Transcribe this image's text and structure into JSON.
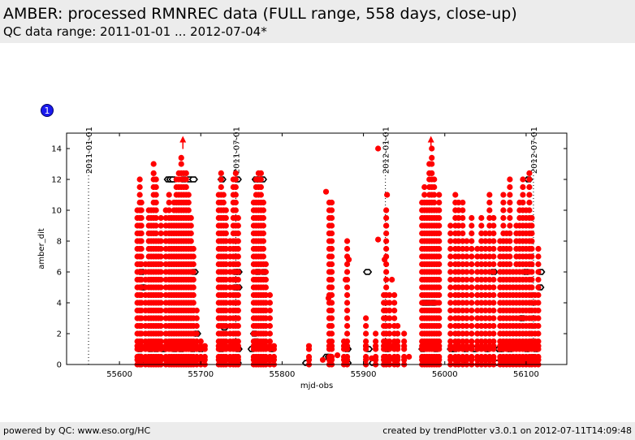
{
  "header": {
    "title": "AMBER: processed RMNREC data (FULL range, 558 days, close-up)",
    "subtitle": "QC data range: 2011-01-01 ... 2012-07-04*"
  },
  "badge": "1",
  "footer": {
    "left": "powered by QC: www.eso.org/HC",
    "right": "created by trendPlotter v3.0.1 on 2012-07-11T14:09:48"
  },
  "colors": {
    "red_points": "#ff0000",
    "black_points": "#000000",
    "badge": "#1a1aee",
    "header_bg": "#ececec"
  },
  "chart_data": {
    "type": "scatter",
    "xlabel": "mjd-obs",
    "ylabel": "amber_dit",
    "xlim": [
      55535,
      56150
    ],
    "ylim": [
      0,
      15
    ],
    "xticks": [
      55600,
      55700,
      55800,
      55900,
      56000,
      56100
    ],
    "yticks": [
      0,
      2,
      4,
      6,
      8,
      10,
      12,
      14
    ],
    "date_markers": [
      {
        "label": "2011-01-01",
        "mjd": 55562
      },
      {
        "label": "2011-07-01",
        "mjd": 55743
      },
      {
        "label": "2012-01-01",
        "mjd": 55927
      },
      {
        "label": "2012-07-01",
        "mjd": 56109
      }
    ],
    "outlier_arrows": [
      {
        "x": 55678,
        "y": 14.5
      },
      {
        "x": 55983,
        "y": 14.5
      }
    ],
    "series": [
      {
        "marker": "open-hexagon-black",
        "points": [
          [
            55625,
            0.5
          ],
          [
            55625,
            1
          ],
          [
            55638,
            1
          ],
          [
            55645,
            1
          ],
          [
            55654,
            1
          ],
          [
            55668,
            1
          ],
          [
            55676,
            1
          ],
          [
            55690,
            1
          ],
          [
            55700,
            1
          ],
          [
            55725,
            1
          ],
          [
            55746,
            1
          ],
          [
            55763,
            1
          ],
          [
            55787,
            1
          ],
          [
            55855,
            0.5
          ],
          [
            55858,
            0.5
          ],
          [
            55880,
            1
          ],
          [
            55906,
            1
          ],
          [
            55929,
            1
          ],
          [
            55973,
            1
          ],
          [
            55989,
            1
          ],
          [
            56008,
            1
          ],
          [
            56026,
            1
          ],
          [
            56037,
            1
          ],
          [
            56052,
            1
          ],
          [
            56067,
            1
          ],
          [
            56080,
            1
          ],
          [
            56101,
            1
          ],
          [
            56112,
            1
          ],
          [
            55625,
            0.1
          ],
          [
            55660,
            0.1
          ],
          [
            55695,
            0.1
          ],
          [
            55745,
            0.1
          ],
          [
            55785,
            0.1
          ],
          [
            55830,
            0.1
          ],
          [
            55880,
            0.1
          ],
          [
            55912,
            0.1
          ],
          [
            55936,
            0.1
          ],
          [
            55978,
            0.1
          ],
          [
            56020,
            0.1
          ],
          [
            56065,
            0.1
          ],
          [
            56098,
            0.1
          ],
          [
            55660,
            12
          ],
          [
            55663,
            12
          ],
          [
            55666,
            12
          ],
          [
            55679,
            12
          ],
          [
            55686,
            12
          ],
          [
            55691,
            12
          ],
          [
            55726,
            12
          ],
          [
            55745,
            12
          ],
          [
            55768,
            12
          ],
          [
            55772,
            12
          ],
          [
            55776,
            12
          ],
          [
            56103,
            12
          ],
          [
            55627,
            6
          ],
          [
            55692,
            6
          ],
          [
            55743,
            6
          ],
          [
            55746,
            6
          ],
          [
            55770,
            6
          ],
          [
            55778,
            6
          ],
          [
            55905,
            6
          ],
          [
            56060,
            6
          ],
          [
            56100,
            6
          ],
          [
            56118,
            6
          ],
          [
            55743,
            5
          ],
          [
            55746,
            5
          ],
          [
            55629,
            5
          ],
          [
            56117,
            5
          ],
          [
            55975,
            4
          ],
          [
            55980,
            4
          ],
          [
            55986,
            4
          ],
          [
            56095,
            3
          ],
          [
            55695,
            2
          ],
          [
            55766,
            2
          ],
          [
            55768,
            1.5
          ],
          [
            55729,
            2.4
          ],
          [
            56070,
            1
          ],
          [
            56012,
            1
          ]
        ]
      },
      {
        "marker": "filled-circle-red",
        "columns": [
          {
            "x": 55622,
            "top": 10.4
          },
          {
            "x": 55625,
            "top": 12.0
          },
          {
            "x": 55627,
            "top": 10.5
          },
          {
            "x": 55632,
            "top": 6.6
          },
          {
            "x": 55636,
            "top": 10.2
          },
          {
            "x": 55639,
            "top": 10.0
          },
          {
            "x": 55642,
            "top": 13.2
          },
          {
            "x": 55645,
            "top": 12.2
          },
          {
            "x": 55648,
            "top": 8.4
          },
          {
            "x": 55651,
            "top": 9.8
          },
          {
            "x": 55657,
            "top": 10.3
          },
          {
            "x": 55661,
            "top": 11.0
          },
          {
            "x": 55664,
            "top": 9.5
          },
          {
            "x": 55667,
            "top": 10.5
          },
          {
            "x": 55670,
            "top": 12.1
          },
          {
            "x": 55673,
            "top": 12.4
          },
          {
            "x": 55676,
            "top": 13.4
          },
          {
            "x": 55679,
            "top": 12.4
          },
          {
            "x": 55682,
            "top": 12.4
          },
          {
            "x": 55685,
            "top": 11.2
          },
          {
            "x": 55688,
            "top": 9.8
          },
          {
            "x": 55691,
            "top": 7.5
          },
          {
            "x": 55695,
            "top": 3.5
          },
          {
            "x": 55700,
            "top": 1.5
          },
          {
            "x": 55705,
            "top": 1.2
          },
          {
            "x": 55722,
            "top": 11.0
          },
          {
            "x": 55725,
            "top": 12.4
          },
          {
            "x": 55728,
            "top": 11.2
          },
          {
            "x": 55731,
            "top": 10.0
          },
          {
            "x": 55736,
            "top": 8.0
          },
          {
            "x": 55740,
            "top": 12.0
          },
          {
            "x": 55743,
            "top": 12.4
          },
          {
            "x": 55746,
            "top": 9.5
          },
          {
            "x": 55765,
            "top": 10.8
          },
          {
            "x": 55768,
            "top": 12.2
          },
          {
            "x": 55771,
            "top": 12.4
          },
          {
            "x": 55774,
            "top": 12.4
          },
          {
            "x": 55777,
            "top": 10.8
          },
          {
            "x": 55780,
            "top": 6.8
          },
          {
            "x": 55785,
            "top": 4.8
          },
          {
            "x": 55790,
            "top": 1.2
          },
          {
            "x": 55833,
            "top": 1.4
          },
          {
            "x": 55858,
            "top": 10.8
          },
          {
            "x": 55861,
            "top": 10.8
          },
          {
            "x": 55876,
            "top": 1.8
          },
          {
            "x": 55880,
            "top": 8.0
          },
          {
            "x": 55903,
            "top": 3.2
          },
          {
            "x": 55915,
            "top": 2.0
          },
          {
            "x": 55925,
            "top": 4.5
          },
          {
            "x": 55928,
            "top": 10.2
          },
          {
            "x": 55932,
            "top": 4.5
          },
          {
            "x": 55938,
            "top": 4.5
          },
          {
            "x": 55942,
            "top": 2.5
          },
          {
            "x": 55950,
            "top": 2.2
          },
          {
            "x": 55972,
            "top": 10.8
          },
          {
            "x": 55975,
            "top": 11.5
          },
          {
            "x": 55978,
            "top": 10.5
          },
          {
            "x": 55981,
            "top": 13.0
          },
          {
            "x": 55984,
            "top": 14.2
          },
          {
            "x": 55987,
            "top": 12.0
          },
          {
            "x": 55990,
            "top": 10.0
          },
          {
            "x": 55993,
            "top": 11.0
          },
          {
            "x": 56007,
            "top": 9.0
          },
          {
            "x": 56013,
            "top": 11.0
          },
          {
            "x": 56017,
            "top": 10.5
          },
          {
            "x": 56022,
            "top": 10.5
          },
          {
            "x": 56027,
            "top": 8.0
          },
          {
            "x": 56033,
            "top": 9.5
          },
          {
            "x": 56040,
            "top": 7.5
          },
          {
            "x": 56045,
            "top": 9.5
          },
          {
            "x": 56050,
            "top": 8.5
          },
          {
            "x": 56055,
            "top": 11.0
          },
          {
            "x": 56060,
            "top": 9.5
          },
          {
            "x": 56068,
            "top": 8.0
          },
          {
            "x": 56072,
            "top": 11.0
          },
          {
            "x": 56076,
            "top": 8.5
          },
          {
            "x": 56080,
            "top": 12.0
          },
          {
            "x": 56084,
            "top": 6.0
          },
          {
            "x": 56088,
            "top": 9.0
          },
          {
            "x": 56092,
            "top": 10.5
          },
          {
            "x": 56096,
            "top": 12.0
          },
          {
            "x": 56100,
            "top": 10.0
          },
          {
            "x": 56104,
            "top": 12.4
          },
          {
            "x": 56107,
            "top": 9.5
          },
          {
            "x": 56111,
            "top": 4.5
          },
          {
            "x": 56115,
            "top": 7.5
          }
        ],
        "extra": [
          [
            55918,
            14.0
          ],
          [
            55918,
            8.1
          ],
          [
            55858,
            8.5
          ],
          [
            55857,
            4.3
          ],
          [
            55860,
            6.0
          ],
          [
            55854,
            11.2
          ],
          [
            55935,
            5.5
          ],
          [
            55928,
            9.0
          ],
          [
            55926,
            6.8
          ],
          [
            55929,
            11.0
          ],
          [
            55882,
            6.8
          ],
          [
            55878,
            5.5
          ],
          [
            55903,
            1.2
          ],
          [
            55910,
            0.4
          ],
          [
            55936,
            1.2
          ],
          [
            55956,
            0.5
          ],
          [
            55850,
            0.3
          ],
          [
            55868,
            0.6
          ]
        ]
      }
    ]
  }
}
